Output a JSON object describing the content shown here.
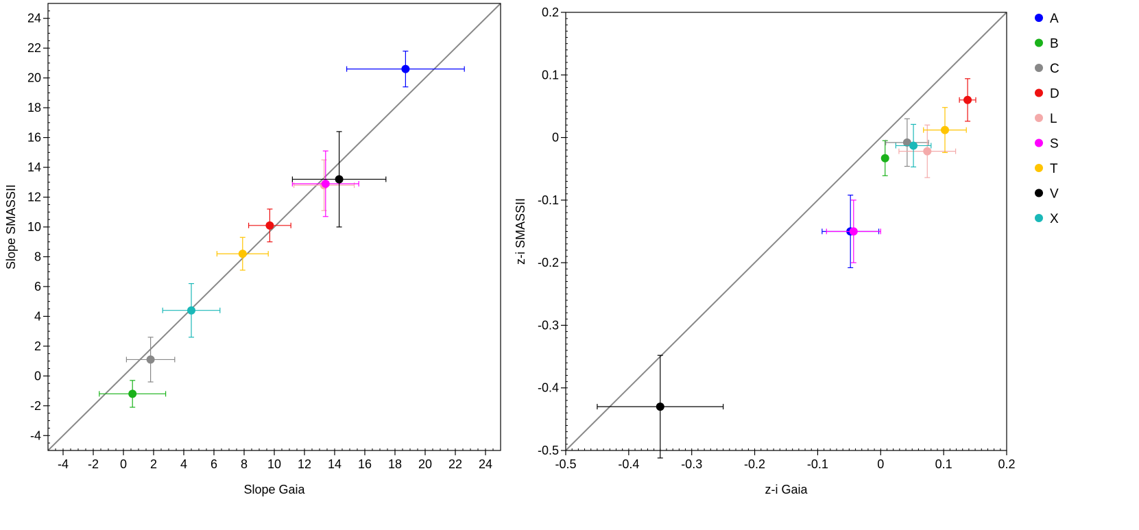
{
  "chart_data": [
    {
      "type": "scatter",
      "xlabel": "Slope Gaia",
      "ylabel": "Slope SMASSII",
      "xlim": [
        -5,
        25
      ],
      "ylim": [
        -5,
        25
      ],
      "x_ticks": [
        "-4",
        "-2",
        "0",
        "2",
        "4",
        "6",
        "8",
        "10",
        "12",
        "14",
        "16",
        "18",
        "20",
        "22",
        "24"
      ],
      "y_ticks": [
        "-4",
        "-2",
        "0",
        "2",
        "4",
        "6",
        "8",
        "10",
        "12",
        "14",
        "16",
        "18",
        "20",
        "22",
        "24"
      ],
      "diagonal_line": true,
      "points": [
        {
          "label": "A",
          "x": 18.7,
          "y": 20.6,
          "xerr": 3.9,
          "yerr": 1.2
        },
        {
          "label": "B",
          "x": 0.6,
          "y": -1.2,
          "xerr": 2.2,
          "yerr": 0.9
        },
        {
          "label": "C",
          "x": 1.8,
          "y": 1.1,
          "xerr": 1.6,
          "yerr": 1.5
        },
        {
          "label": "D",
          "x": 9.7,
          "y": 10.1,
          "xerr": 1.4,
          "yerr": 1.1
        },
        {
          "label": "L",
          "x": 13.3,
          "y": 12.8,
          "xerr": 2.0,
          "yerr": 1.7
        },
        {
          "label": "S",
          "x": 13.4,
          "y": 12.9,
          "xerr": 2.2,
          "yerr": 2.2
        },
        {
          "label": "T",
          "x": 7.9,
          "y": 8.2,
          "xerr": 1.7,
          "yerr": 1.1
        },
        {
          "label": "V",
          "x": 14.3,
          "y": 13.2,
          "xerr": 3.1,
          "yerr": 3.2
        },
        {
          "label": "X",
          "x": 4.5,
          "y": 4.4,
          "xerr": 1.9,
          "yerr": 1.8
        }
      ]
    },
    {
      "type": "scatter",
      "xlabel": "z-i Gaia",
      "ylabel": "z-i SMASSII",
      "xlim": [
        -0.5,
        0.2
      ],
      "ylim": [
        -0.5,
        0.2
      ],
      "x_ticks": [
        "-0.5",
        "-0.4",
        "-0.3",
        "-0.2",
        "-0.1",
        "0",
        "0.1",
        "0.2"
      ],
      "y_ticks": [
        "-0.5",
        "-0.4",
        "-0.3",
        "-0.2",
        "-0.1",
        "0",
        "0.1",
        "0.2"
      ],
      "diagonal_line": true,
      "points": [
        {
          "label": "A",
          "x": -0.048,
          "y": -0.15,
          "xerr": 0.045,
          "yerr": 0.058
        },
        {
          "label": "B",
          "x": 0.007,
          "y": -0.033,
          "xerr": 0.0,
          "yerr": 0.028
        },
        {
          "label": "C",
          "x": 0.042,
          "y": -0.008,
          "xerr": 0.034,
          "yerr": 0.038
        },
        {
          "label": "D",
          "x": 0.138,
          "y": 0.06,
          "xerr": 0.013,
          "yerr": 0.034
        },
        {
          "label": "L",
          "x": 0.074,
          "y": -0.022,
          "xerr": 0.045,
          "yerr": 0.042
        },
        {
          "label": "S",
          "x": -0.043,
          "y": -0.15,
          "xerr": 0.043,
          "yerr": 0.05
        },
        {
          "label": "T",
          "x": 0.102,
          "y": 0.012,
          "xerr": 0.034,
          "yerr": 0.036
        },
        {
          "label": "V",
          "x": -0.35,
          "y": -0.43,
          "xerr": 0.1,
          "yerr": 0.082
        },
        {
          "label": "X",
          "x": 0.052,
          "y": -0.013,
          "xerr": 0.028,
          "yerr": 0.034
        }
      ]
    }
  ],
  "legend": {
    "placement": "right",
    "entries": [
      {
        "label": "A",
        "color": "#0000ff"
      },
      {
        "label": "B",
        "color": "#1ab21a"
      },
      {
        "label": "C",
        "color": "#888888"
      },
      {
        "label": "D",
        "color": "#ee1111"
      },
      {
        "label": "L",
        "color": "#f4aaaa"
      },
      {
        "label": "S",
        "color": "#ff00ff"
      },
      {
        "label": "T",
        "color": "#ffc400"
      },
      {
        "label": "V",
        "color": "#000000"
      },
      {
        "label": "X",
        "color": "#1ab8b8"
      }
    ]
  }
}
